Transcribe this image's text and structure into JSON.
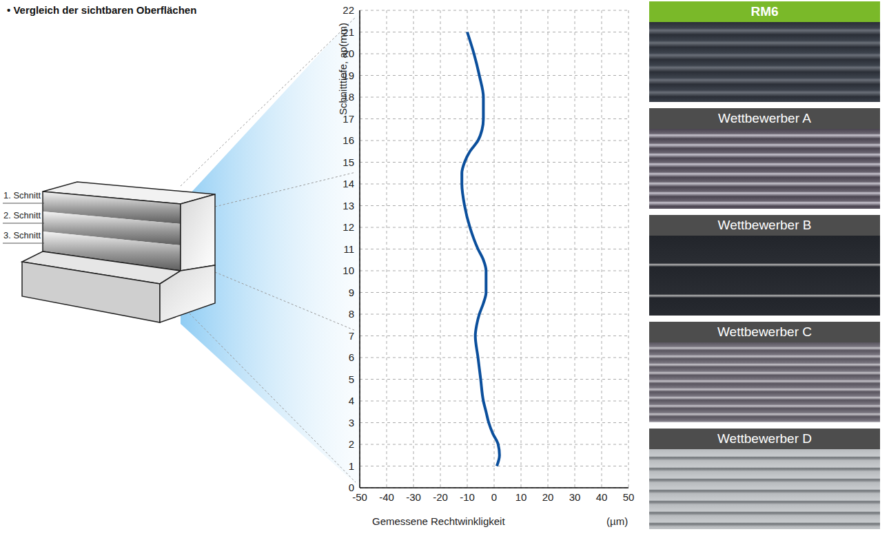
{
  "title": "• Vergleich der sichtbaren Oberflächen",
  "diagram": {
    "cuts": [
      "1. Schnitt",
      "2. Schnitt",
      "3. Schnitt"
    ]
  },
  "photos": [
    {
      "label": "RM6",
      "highlight": true
    },
    {
      "label": "Wettbewerber A",
      "highlight": false
    },
    {
      "label": "Wettbewerber B",
      "highlight": false
    },
    {
      "label": "Wettbewerber C",
      "highlight": false
    },
    {
      "label": "Wettbewerber D",
      "highlight": false
    }
  ],
  "chart_data": {
    "type": "line",
    "x_label": "Gemessene Rechtwinkligkeit",
    "x_unit": "(µm)",
    "y_label": "Schnitttiefe, ap(mm)",
    "color": "#0b4f9c",
    "x": [
      1,
      2,
      1.5,
      -0.5,
      -2,
      -3,
      -4,
      -5,
      -6,
      -7,
      -6.5,
      -5.5,
      -4,
      -3,
      -3,
      -4,
      -6,
      -9,
      -11,
      -12,
      -12,
      -11,
      -9,
      -6,
      -4.5,
      -4,
      -4,
      -5.5,
      -7.5,
      -10
    ],
    "y": [
      1,
      1.5,
      2,
      2.5,
      3,
      3.5,
      4,
      5,
      6,
      7,
      7.5,
      8,
      8.5,
      9,
      10,
      10.5,
      11,
      12,
      13,
      14,
      14.5,
      15,
      15.5,
      16,
      16.5,
      17,
      18,
      19,
      20,
      21
    ],
    "xlim": [
      -50,
      50
    ],
    "xticks": [
      -50,
      -40,
      -30,
      -20,
      -10,
      0,
      10,
      20,
      30,
      40,
      50
    ],
    "ylim": [
      0,
      22
    ],
    "yticks": [
      0,
      1,
      2,
      3,
      4,
      5,
      6,
      7,
      8,
      9,
      10,
      11,
      12,
      13,
      14,
      15,
      16,
      17,
      18,
      19,
      20,
      21,
      22
    ],
    "grid": true
  }
}
